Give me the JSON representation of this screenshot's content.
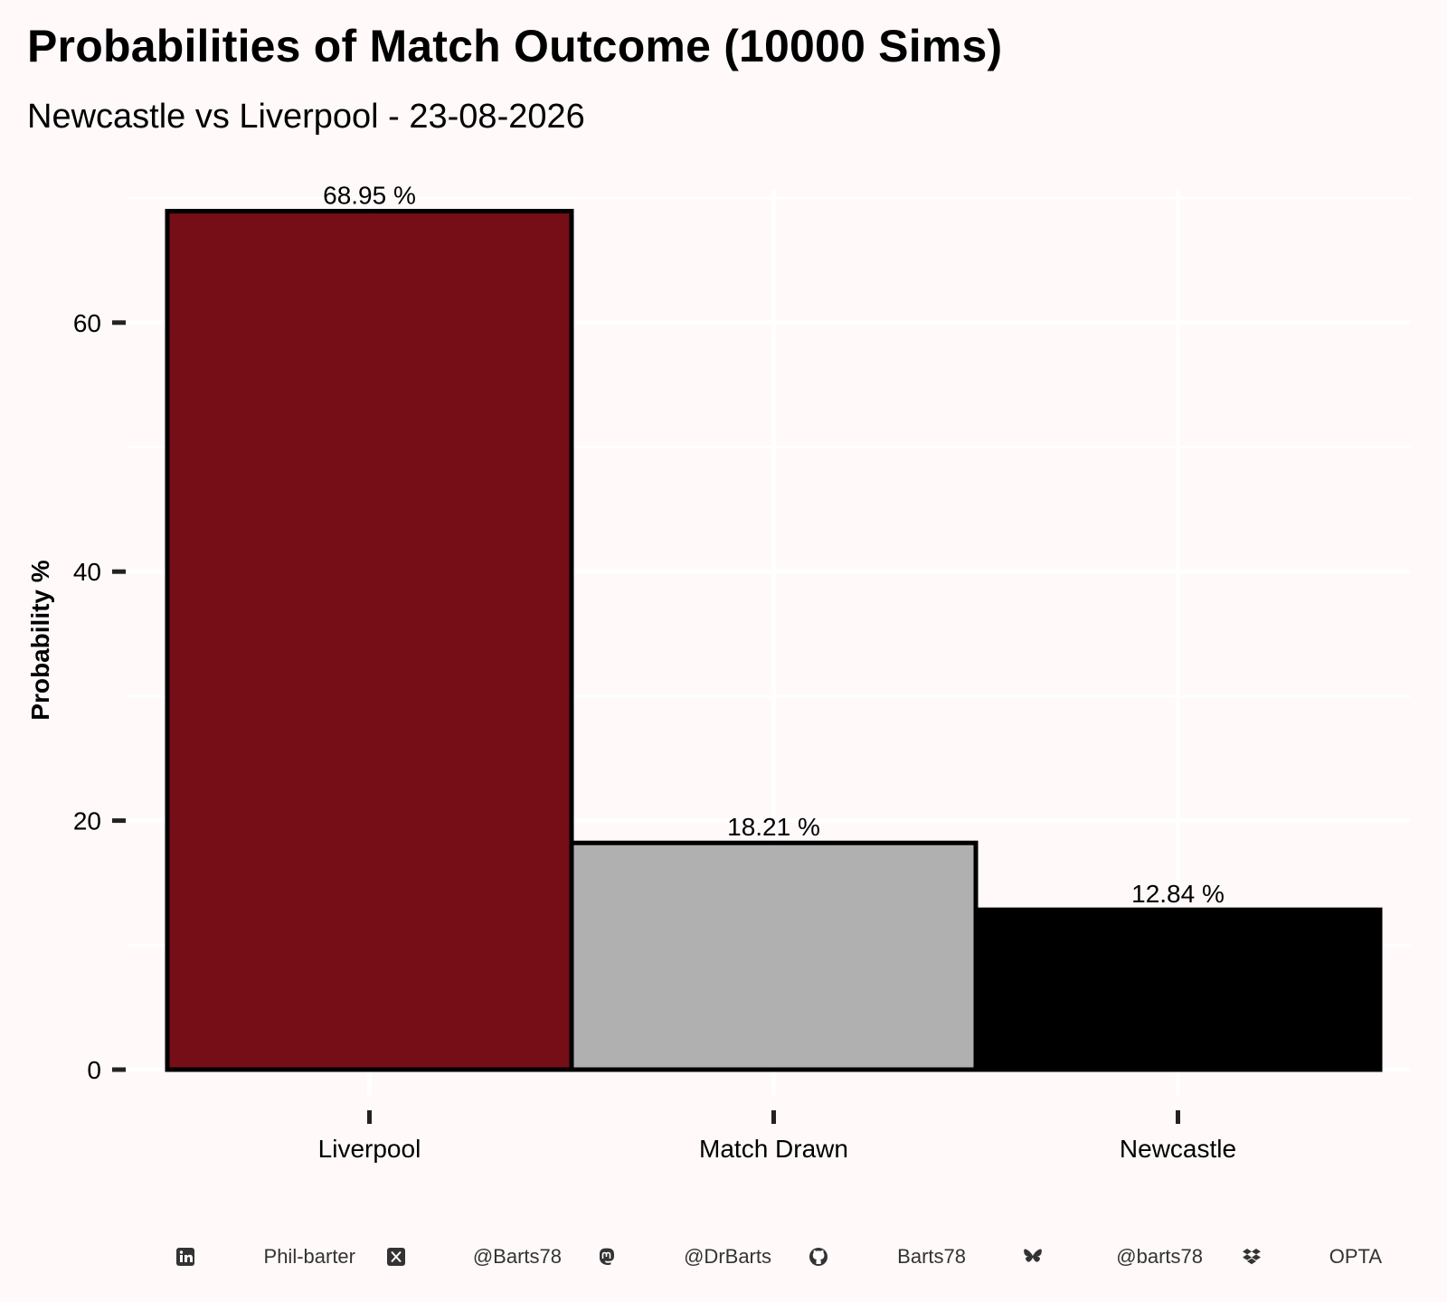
{
  "title": "Probabilities of Match Outcome (10000 Sims)",
  "subtitle": "Newcastle vs Liverpool - 23-08-2026",
  "chart_data": {
    "type": "bar",
    "categories": [
      "Liverpool",
      "Match Drawn",
      "Newcastle"
    ],
    "values": [
      68.95,
      18.21,
      12.84
    ],
    "data_labels": [
      "68.95  %",
      "18.21  %",
      "12.84  %"
    ],
    "colors": [
      "#750e17",
      "#b0b0b0",
      "#000000"
    ],
    "xlabel": "",
    "ylabel": "Probability %",
    "ylim": [
      0,
      70
    ],
    "yticks": [
      0,
      20,
      40,
      60
    ],
    "grid": true,
    "legend": "none"
  },
  "footer": {
    "items": [
      {
        "icon": "linkedin-icon",
        "text": "Phil-barter"
      },
      {
        "icon": "x-twitter-icon",
        "text": "@Barts78"
      },
      {
        "icon": "mastodon-icon",
        "text": "@DrBarts"
      },
      {
        "icon": "github-icon",
        "text": "Barts78"
      },
      {
        "icon": "bluesky-butterfly-icon",
        "text": "@barts78"
      },
      {
        "icon": "dropbox-icon",
        "text": "OPTA"
      }
    ]
  }
}
